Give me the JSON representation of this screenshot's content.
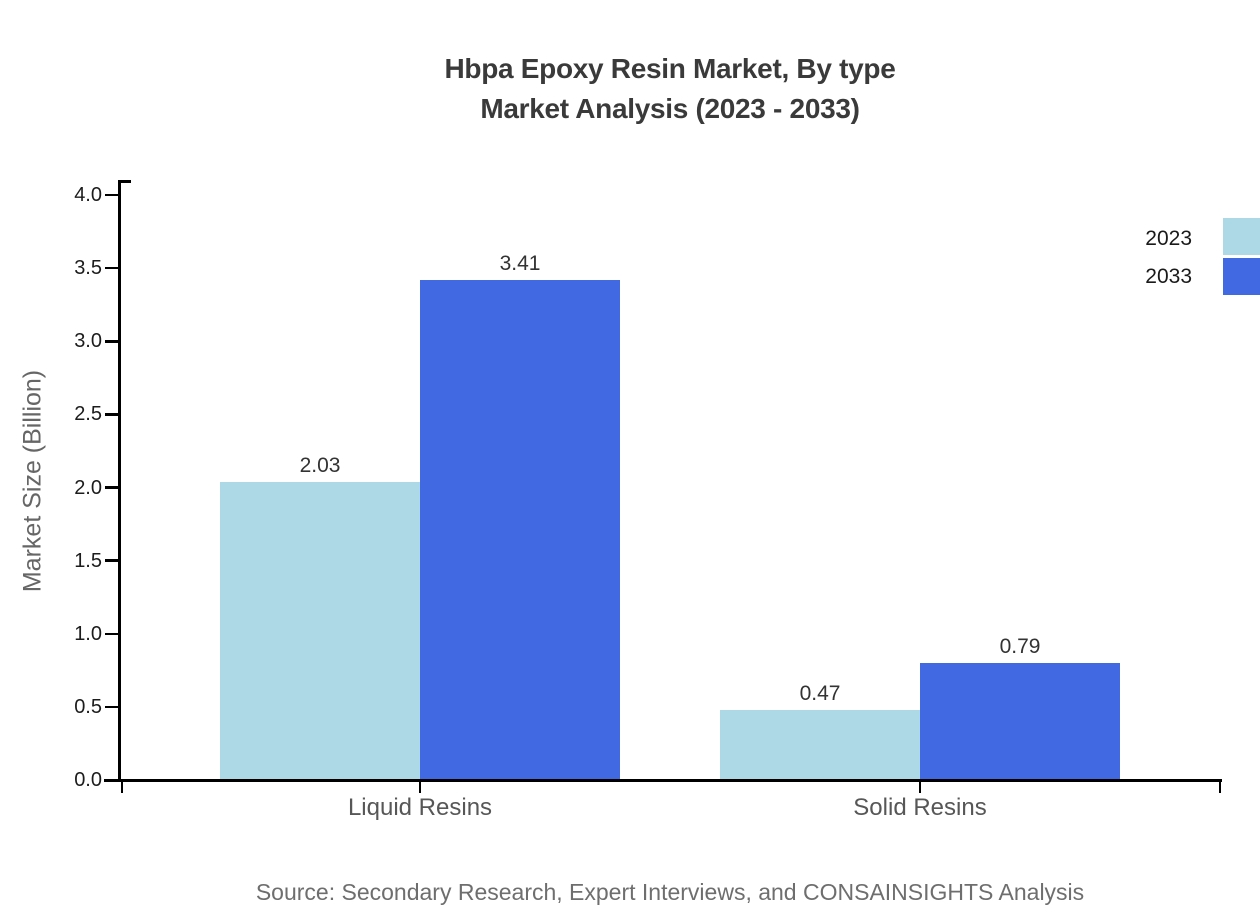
{
  "page": {
    "source_note": "Source: Secondary Research, Expert Interviews, and CONSAINSIGHTS Analysis"
  },
  "chart_data": {
    "type": "bar",
    "title": "Hbpa Epoxy Resin Market, By type Market Analysis (2023 - 2033)",
    "title_lines": [
      "Hbpa Epoxy Resin Market, By type",
      "Market Analysis (2023 - 2033)"
    ],
    "categories": [
      "Liquid Resins",
      "Solid Resins"
    ],
    "series": [
      {
        "name": "2023",
        "color": "#ADD8E6",
        "values": [
          2.03,
          0.47
        ]
      },
      {
        "name": "2033",
        "color": "#4169E1",
        "values": [
          3.41,
          0.79
        ]
      }
    ],
    "xlabel": "",
    "ylabel": "Market Size (Billion)",
    "ylim": [
      0,
      4
    ],
    "yticks": [
      0,
      0.5,
      1,
      1.5,
      2,
      2.5,
      3,
      3.5,
      4
    ],
    "grid": false,
    "legend_position": "right",
    "value_labels_shown": true,
    "palette": {
      "axis": "#000000",
      "title_text": "#3a3a3a",
      "tick_label_text": "#1c1c1c",
      "value_label_text": "#333333",
      "category_label_text": "#575757",
      "axis_title_text": "#666666",
      "source_text": "#6e6e6e",
      "background": "#ffffff"
    }
  }
}
